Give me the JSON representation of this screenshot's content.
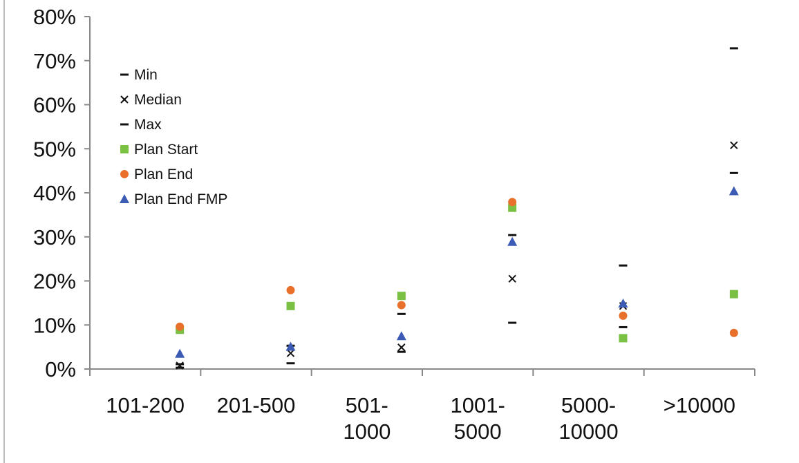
{
  "chart_data": {
    "type": "scatter",
    "title": "",
    "xlabel": "",
    "ylabel": "",
    "categories": [
      [
        "101-200"
      ],
      [
        "201-500"
      ],
      [
        "501-",
        "1000"
      ],
      [
        "1001-",
        "5000"
      ],
      [
        "5000-",
        "10000"
      ],
      [
        ">10000"
      ]
    ],
    "y_ticks": [
      "0%",
      "10%",
      "20%",
      "30%",
      "40%",
      "50%",
      "60%",
      "70%",
      "80%"
    ],
    "ylim": [
      0,
      80
    ],
    "grid": false,
    "legend_position": "top-left",
    "series": [
      {
        "name": "Min",
        "marker": "dash",
        "color": "#111111",
        "values": [
          0.3,
          1.3,
          3.9,
          10.5,
          9.5,
          44.5
        ]
      },
      {
        "name": "Median",
        "marker": "x",
        "color": "#111111",
        "values": [
          0.8,
          3.6,
          4.9,
          20.5,
          14.3,
          50.8
        ]
      },
      {
        "name": "Max",
        "marker": "dash",
        "color": "#111111",
        "values": [
          1.1,
          5.3,
          12.5,
          30.4,
          23.5,
          72.8
        ]
      },
      {
        "name": "Plan Start",
        "marker": "square",
        "color": "#7ac143",
        "values": [
          8.9,
          14.3,
          16.6,
          36.6,
          7.0,
          17.0
        ]
      },
      {
        "name": "Plan End",
        "marker": "circle",
        "color": "#e8702a",
        "values": [
          9.6,
          17.9,
          14.5,
          37.9,
          12.1,
          8.2
        ]
      },
      {
        "name": "Plan End FMP",
        "marker": "triangle",
        "color": "#3b5bb5",
        "values": [
          3.5,
          5.1,
          7.5,
          28.9,
          14.9,
          40.4
        ]
      }
    ]
  }
}
